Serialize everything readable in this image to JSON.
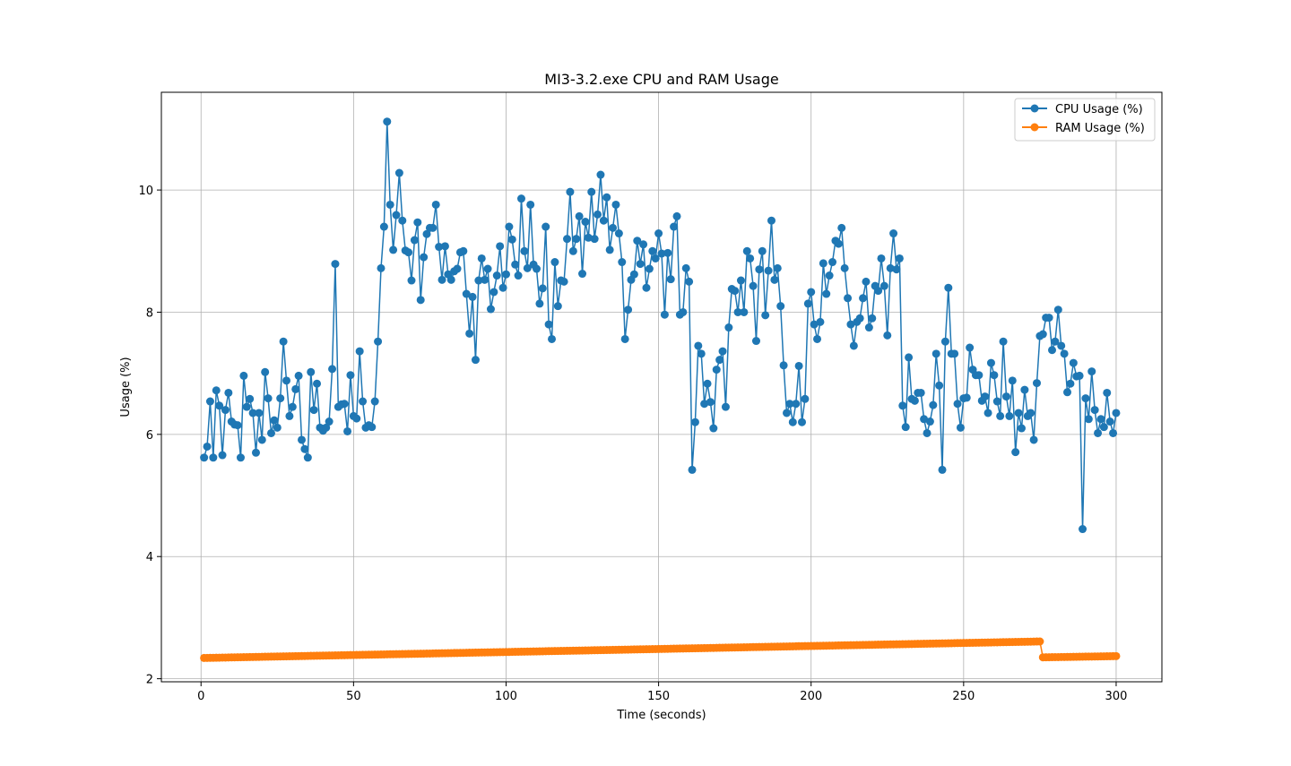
{
  "chart_data": {
    "type": "line",
    "title": "MI3-3.2.exe CPU and RAM Usage",
    "xlabel": "Time (seconds)",
    "ylabel": "Usage (%)",
    "xlim": [
      -13,
      315
    ],
    "ylim": [
      1.95,
      11.6
    ],
    "xticks": [
      0,
      50,
      100,
      150,
      200,
      250,
      300
    ],
    "yticks": [
      2,
      4,
      6,
      8,
      10
    ],
    "grid": true,
    "legend_position": "top-right",
    "colors": {
      "cpu": "#1f77b4",
      "ram": "#ff7f0e"
    },
    "series": [
      {
        "name": "CPU Usage (%)",
        "color": "#1f77b4",
        "x_start": 1,
        "x_step": 1,
        "values": [
          5.62,
          5.8,
          6.54,
          5.62,
          6.72,
          6.47,
          5.66,
          6.4,
          6.68,
          6.21,
          6.16,
          6.15,
          5.62,
          6.96,
          6.45,
          6.58,
          6.35,
          5.7,
          6.35,
          5.91,
          7.02,
          6.59,
          6.02,
          6.23,
          6.11,
          6.59,
          7.52,
          6.88,
          6.3,
          6.45,
          6.74,
          6.96,
          5.91,
          5.76,
          5.62,
          7.02,
          6.4,
          6.83,
          6.11,
          6.06,
          6.11,
          6.21,
          7.07,
          8.79,
          6.45,
          6.49,
          6.5,
          6.05,
          6.97,
          6.3,
          6.26,
          7.36,
          6.54,
          6.11,
          6.15,
          6.12,
          6.54,
          7.52,
          8.72,
          9.4,
          11.12,
          9.76,
          9.02,
          9.59,
          10.28,
          9.5,
          9.01,
          8.98,
          8.52,
          9.18,
          9.47,
          8.2,
          8.9,
          9.28,
          9.38,
          9.38,
          9.76,
          9.07,
          8.53,
          9.08,
          8.62,
          8.53,
          8.67,
          8.71,
          8.98,
          9.0,
          8.3,
          7.65,
          8.25,
          7.22,
          8.52,
          8.88,
          8.53,
          8.71,
          8.05,
          8.33,
          8.6,
          9.08,
          8.4,
          8.62,
          9.4,
          9.19,
          8.78,
          8.6,
          9.86,
          9.0,
          8.72,
          9.76,
          8.78,
          8.71,
          8.14,
          8.39,
          9.4,
          7.8,
          7.56,
          8.82,
          8.1,
          8.52,
          8.5,
          9.2,
          9.97,
          9.0,
          9.2,
          9.57,
          8.63,
          9.48,
          9.22,
          9.97,
          9.2,
          9.6,
          10.25,
          9.5,
          9.88,
          9.02,
          9.38,
          9.76,
          9.29,
          8.82,
          7.56,
          8.04,
          8.53,
          8.62,
          9.17,
          8.79,
          9.11,
          8.4,
          8.71,
          9.0,
          8.88,
          9.29,
          8.96,
          7.96,
          8.97,
          8.54,
          9.4,
          9.57,
          7.96,
          8.0,
          8.72,
          8.5,
          5.42,
          6.2,
          7.45,
          7.32,
          6.5,
          6.83,
          6.53,
          6.1,
          7.06,
          7.22,
          7.36,
          6.45,
          7.75,
          8.38,
          8.35,
          8.0,
          8.52,
          8.0,
          9.0,
          8.88,
          8.43,
          7.53,
          8.7,
          9.0,
          7.95,
          8.68,
          9.5,
          8.53,
          8.72,
          8.1,
          7.13,
          6.35,
          6.5,
          6.2,
          6.5,
          7.12,
          6.2,
          6.58,
          8.14,
          8.33,
          7.8,
          7.56,
          7.84,
          8.8,
          8.3,
          8.6,
          8.82,
          9.17,
          9.12,
          9.38,
          8.72,
          8.23,
          7.8,
          7.45,
          7.84,
          7.9,
          8.23,
          8.5,
          7.75,
          7.9,
          8.43,
          8.35,
          8.88,
          8.43,
          7.62,
          8.72,
          9.29,
          8.7,
          8.88,
          6.47,
          6.12,
          7.26,
          6.58,
          6.55,
          6.68,
          6.68,
          6.25,
          6.02,
          6.21,
          6.48,
          7.32,
          6.8,
          5.42,
          7.52,
          8.4,
          7.32,
          7.32,
          6.5,
          6.11,
          6.59,
          6.6,
          7.42,
          7.06,
          6.97,
          6.97,
          6.55,
          6.62,
          6.35,
          7.17,
          6.97,
          6.54,
          6.3,
          7.52,
          6.62,
          6.3,
          6.88,
          5.71,
          6.35,
          6.1,
          6.73,
          6.3,
          6.35,
          5.91,
          6.84,
          7.61,
          7.64,
          7.91,
          7.91,
          7.38,
          7.52,
          8.04,
          7.45,
          7.32,
          6.69,
          6.83,
          7.17,
          6.95,
          6.96,
          4.45,
          6.59,
          6.25,
          7.03,
          6.4,
          6.02,
          6.25,
          6.12,
          6.68,
          6.21,
          6.02,
          6.35
        ]
      },
      {
        "name": "RAM Usage (%)",
        "color": "#ff7f0e",
        "segments": [
          {
            "x_from": 1,
            "x_to": 275,
            "y_from": 2.34,
            "y_to": 2.61
          },
          {
            "x_from": 276,
            "x_to": 300,
            "y_from": 2.35,
            "y_to": 2.37
          }
        ]
      }
    ]
  }
}
